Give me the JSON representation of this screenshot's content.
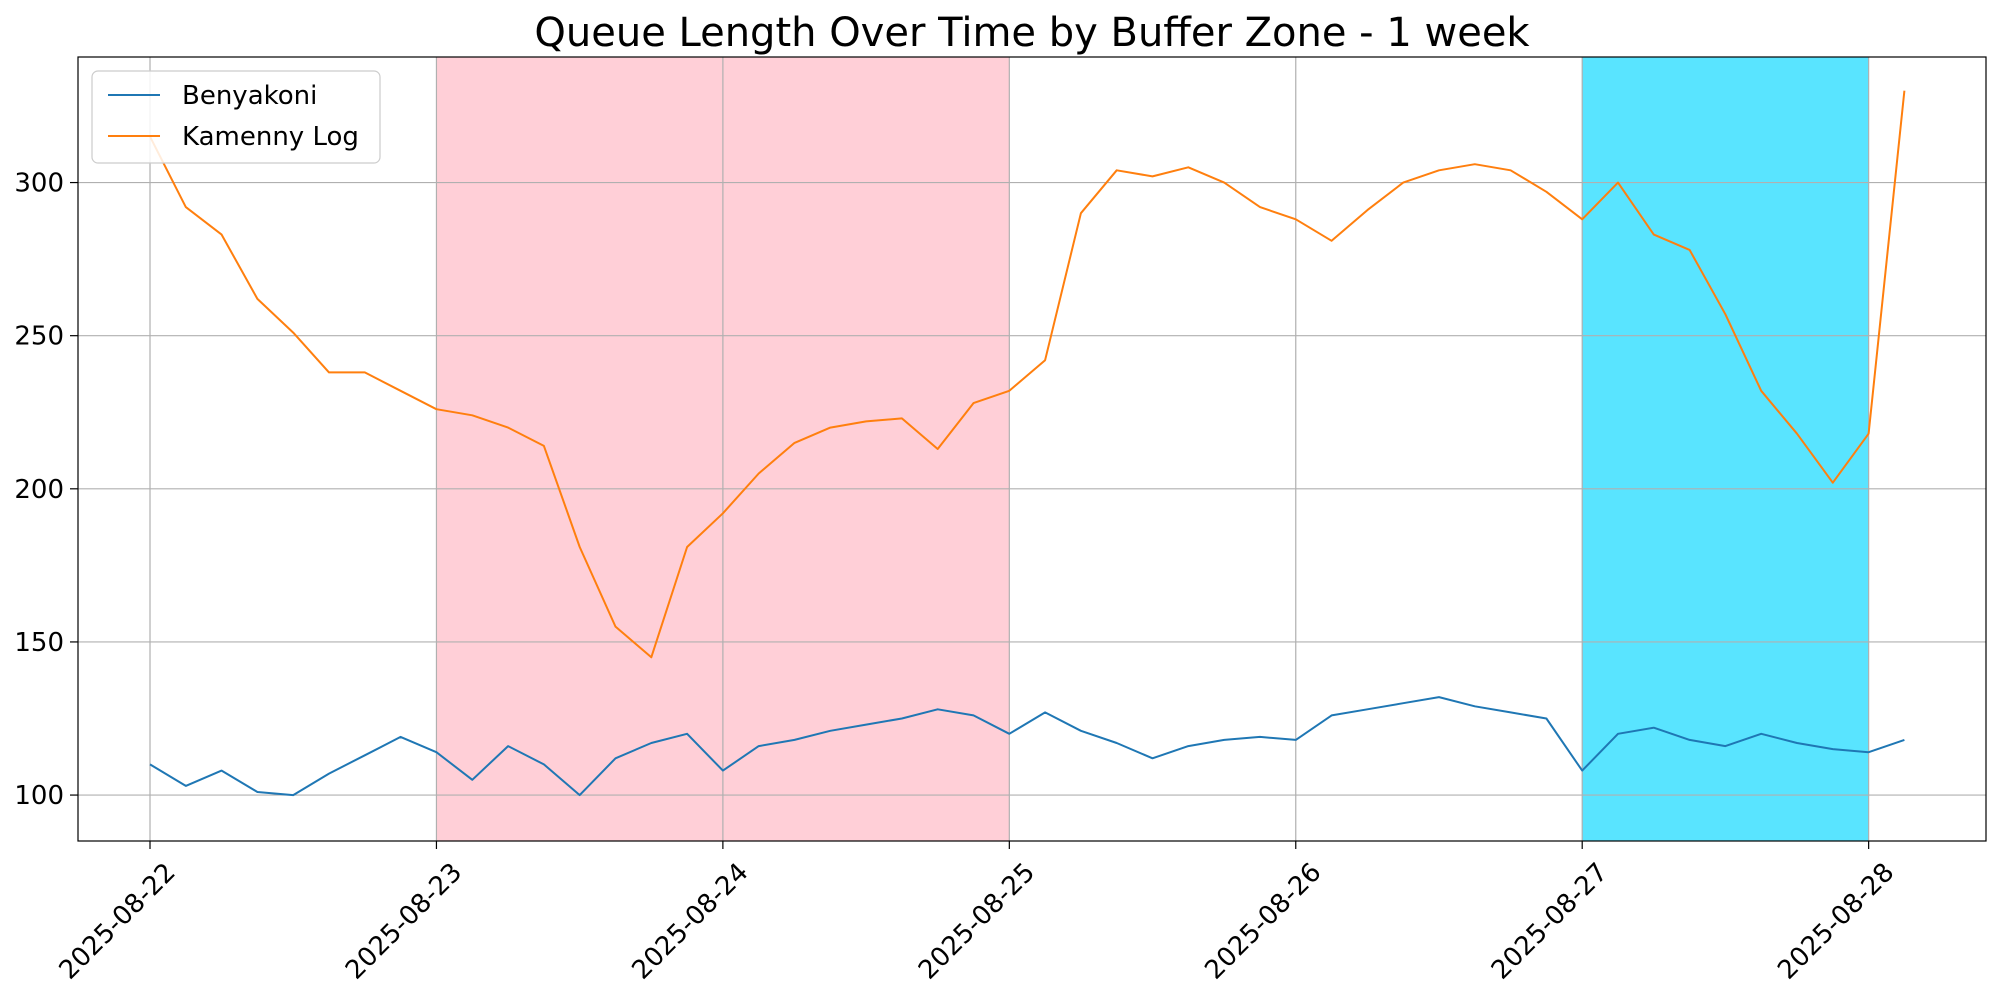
{
  "chart_data": {
    "type": "line",
    "title": "Queue Length Over Time by Buffer Zone - 1 week",
    "xlabel": "",
    "ylabel": "",
    "x_ticks": [
      "2025-08-22",
      "2025-08-23",
      "2025-08-24",
      "2025-08-25",
      "2025-08-26",
      "2025-08-27",
      "2025-08-28"
    ],
    "y_ticks": [
      100,
      150,
      200,
      250,
      300
    ],
    "xlim": [
      "2025-08-21T17:58",
      "2025-08-28T09:50"
    ],
    "ylim": [
      85,
      341
    ],
    "grid": true,
    "legend_position": "top-left",
    "shaded_regions": [
      {
        "start": "2025-08-23",
        "end": "2025-08-25",
        "color": "#ffb6c1"
      },
      {
        "start": "2025-08-27",
        "end": "2025-08-28",
        "color": "#00d5ff"
      }
    ],
    "series": [
      {
        "name": "Benyakoni",
        "color": "#1f77b4",
        "x": [
          "2025-08-22T00:00",
          "2025-08-22T03:00",
          "2025-08-22T06:00",
          "2025-08-22T09:00",
          "2025-08-22T12:00",
          "2025-08-22T15:00",
          "2025-08-22T18:00",
          "2025-08-22T21:00",
          "2025-08-23T00:00",
          "2025-08-23T03:00",
          "2025-08-23T06:00",
          "2025-08-23T09:00",
          "2025-08-23T12:00",
          "2025-08-23T15:00",
          "2025-08-23T18:00",
          "2025-08-23T21:00",
          "2025-08-24T00:00",
          "2025-08-24T03:00",
          "2025-08-24T06:00",
          "2025-08-24T09:00",
          "2025-08-24T12:00",
          "2025-08-24T15:00",
          "2025-08-24T18:00",
          "2025-08-24T21:00",
          "2025-08-25T00:00",
          "2025-08-25T03:00",
          "2025-08-25T06:00",
          "2025-08-25T09:00",
          "2025-08-25T12:00",
          "2025-08-25T15:00",
          "2025-08-25T18:00",
          "2025-08-25T21:00",
          "2025-08-26T00:00",
          "2025-08-26T03:00",
          "2025-08-26T06:00",
          "2025-08-26T09:00",
          "2025-08-26T12:00",
          "2025-08-26T15:00",
          "2025-08-26T18:00",
          "2025-08-26T21:00",
          "2025-08-27T00:00",
          "2025-08-27T03:00",
          "2025-08-27T06:00",
          "2025-08-27T09:00",
          "2025-08-27T12:00",
          "2025-08-27T15:00",
          "2025-08-27T18:00",
          "2025-08-27T21:00",
          "2025-08-28T00:00",
          "2025-08-28T03:00"
        ],
        "values": [
          110,
          103,
          108,
          101,
          100,
          107,
          113,
          119,
          114,
          105,
          116,
          110,
          100,
          112,
          117,
          120,
          108,
          116,
          118,
          121,
          123,
          125,
          128,
          126,
          120,
          127,
          121,
          117,
          112,
          116,
          118,
          119,
          118,
          126,
          128,
          130,
          132,
          129,
          127,
          125,
          108,
          120,
          122,
          118,
          116,
          120,
          117,
          115,
          114,
          118
        ]
      },
      {
        "name": "Kamenny Log",
        "color": "#ff7f0e",
        "x": [
          "2025-08-22T00:00",
          "2025-08-22T03:00",
          "2025-08-22T06:00",
          "2025-08-22T09:00",
          "2025-08-22T12:00",
          "2025-08-22T15:00",
          "2025-08-22T18:00",
          "2025-08-22T21:00",
          "2025-08-23T00:00",
          "2025-08-23T03:00",
          "2025-08-23T06:00",
          "2025-08-23T09:00",
          "2025-08-23T12:00",
          "2025-08-23T15:00",
          "2025-08-23T18:00",
          "2025-08-23T21:00",
          "2025-08-24T00:00",
          "2025-08-24T03:00",
          "2025-08-24T06:00",
          "2025-08-24T09:00",
          "2025-08-24T12:00",
          "2025-08-24T15:00",
          "2025-08-24T18:00",
          "2025-08-24T21:00",
          "2025-08-25T00:00",
          "2025-08-25T03:00",
          "2025-08-25T06:00",
          "2025-08-25T09:00",
          "2025-08-25T12:00",
          "2025-08-25T15:00",
          "2025-08-25T18:00",
          "2025-08-25T21:00",
          "2025-08-26T00:00",
          "2025-08-26T03:00",
          "2025-08-26T06:00",
          "2025-08-26T09:00",
          "2025-08-26T12:00",
          "2025-08-26T15:00",
          "2025-08-26T18:00",
          "2025-08-26T21:00",
          "2025-08-27T00:00",
          "2025-08-27T03:00",
          "2025-08-27T06:00",
          "2025-08-27T09:00",
          "2025-08-27T12:00",
          "2025-08-27T15:00",
          "2025-08-27T18:00",
          "2025-08-27T21:00",
          "2025-08-28T00:00",
          "2025-08-28T03:00"
        ],
        "values": [
          315,
          292,
          283,
          262,
          251,
          238,
          238,
          232,
          226,
          224,
          220,
          214,
          181,
          155,
          145,
          181,
          192,
          205,
          215,
          220,
          222,
          223,
          213,
          228,
          232,
          242,
          290,
          304,
          302,
          305,
          300,
          292,
          288,
          281,
          291,
          300,
          304,
          306,
          304,
          297,
          288,
          300,
          283,
          278,
          257,
          232,
          218,
          202,
          218,
          330
        ]
      }
    ]
  }
}
